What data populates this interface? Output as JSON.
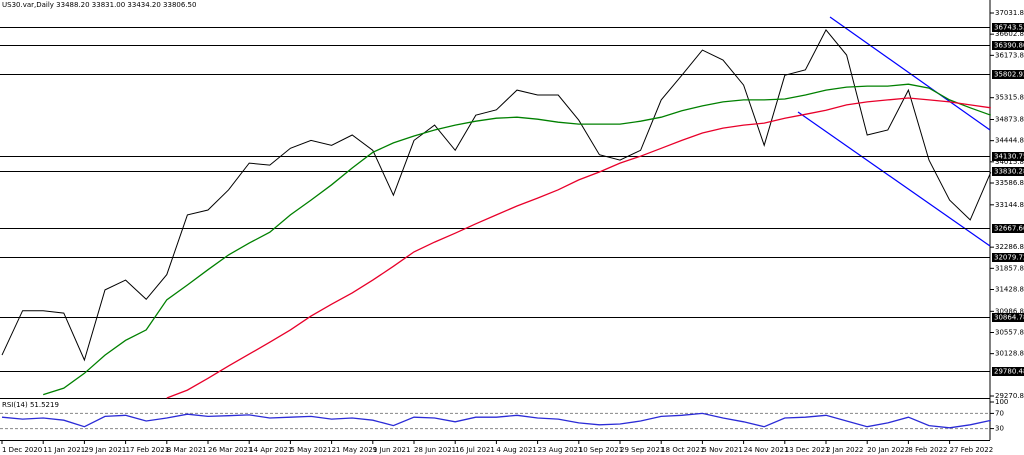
{
  "chart_data": [
    {
      "type": "line",
      "title": "US30.var,Daily  33488.20 33831.00 33434.20 33806.50",
      "categories": [
        "1 Dec 2020",
        null,
        "11 Jan 2021",
        null,
        "29 Jan 2021",
        null,
        "17 Feb 2021",
        null,
        "8 Mar 2021",
        null,
        "26 Mar 2021",
        null,
        "14 Apr 2021",
        null,
        "5 May 2021",
        null,
        "21 May 2021",
        null,
        "9 Jun 2021",
        null,
        "28 Jun 2021",
        null,
        "16 Jul 2021",
        null,
        "4 Aug 2021",
        null,
        "23 Aug 2021",
        null,
        "10 Sep 2021",
        null,
        "29 Sep 2021",
        null,
        "18 Oct 2021",
        null,
        "5 Nov 2021",
        null,
        "24 Nov 2021",
        null,
        "13 Dec 2021",
        null,
        "2 Jan 2022",
        null,
        "20 Jan 2022",
        null,
        "8 Feb 2022",
        null,
        "27 Feb 2022",
        null,
        null
      ],
      "series": [
        {
          "color": "#000000",
          "values": [
            30100,
            31000,
            31000,
            30950,
            30000,
            31420,
            31620,
            31230,
            31730,
            32940,
            33040,
            33450,
            33990,
            33950,
            34290,
            34450,
            34350,
            34560,
            34250,
            33340,
            34450,
            34760,
            34250,
            34960,
            35070,
            35470,
            35370,
            35370,
            34860,
            34160,
            34050,
            34250,
            35270,
            35770,
            36280,
            36080,
            35570,
            34350,
            35770,
            35880,
            36690,
            36180,
            34560,
            34660,
            35470,
            34050,
            33240,
            32840,
            33806.5
          ]
        },
        {
          "color": "#008000",
          "values": [
            null,
            null,
            29300,
            29430,
            29730,
            30100,
            30400,
            30610,
            31220,
            31520,
            31830,
            32130,
            32370,
            32590,
            32940,
            33240,
            33550,
            33890,
            34210,
            34400,
            34540,
            34660,
            34760,
            34840,
            34900,
            34920,
            34880,
            34820,
            34780,
            34780,
            34780,
            34840,
            34920,
            35050,
            35150,
            35230,
            35270,
            35270,
            35290,
            35370,
            35470,
            35530,
            35550,
            35550,
            35590,
            35510,
            35270,
            35110,
            34960
          ]
        },
        {
          "color": "#e8002a",
          "values": [
            null,
            null,
            null,
            null,
            null,
            null,
            null,
            null,
            29230,
            29390,
            29630,
            29880,
            30120,
            30360,
            30610,
            30890,
            31130,
            31360,
            31620,
            31900,
            32190,
            32390,
            32570,
            32760,
            32940,
            33120,
            33280,
            33450,
            33650,
            33810,
            33990,
            34130,
            34290,
            34450,
            34600,
            34700,
            34760,
            34800,
            34900,
            34980,
            35060,
            35170,
            35230,
            35270,
            35310,
            35270,
            35230,
            35170,
            35110
          ]
        }
      ],
      "ylim": [
        29270.8,
        37031.8
      ],
      "yticks": [
        {
          "value": 37031.8,
          "label": "37031.80"
        },
        {
          "value": 36602.8,
          "label": "36602.80"
        },
        {
          "value": 36173.8,
          "label": "36173.80"
        },
        {
          "value": 35315.8,
          "label": "35315.80"
        },
        {
          "value": 34873.8,
          "label": "34873.80"
        },
        {
          "value": 34444.8,
          "label": "34444.80"
        },
        {
          "value": 34015.8,
          "label": "34015.80"
        },
        {
          "value": 33586.8,
          "label": "33586.80"
        },
        {
          "value": 33144.8,
          "label": "33144.80"
        },
        {
          "value": 32286.8,
          "label": "32286.80"
        },
        {
          "value": 31857.8,
          "label": "31857.80"
        },
        {
          "value": 31428.8,
          "label": "31428.80"
        },
        {
          "value": 30986.8,
          "label": "30986.80"
        },
        {
          "value": 30557.8,
          "label": "30557.80"
        },
        {
          "value": 30128.8,
          "label": "30128.80"
        },
        {
          "value": 29270.8,
          "label": "29270.80"
        }
      ],
      "levels": [
        36743.53,
        {
          "value": 36390.8,
          "label": "36390.80"
        },
        35802.93,
        34130.75,
        33830.28,
        {
          "value": 32667.6,
          "label": "32667.60"
        },
        32079.72,
        30864.78,
        29780.48
      ]
    },
    {
      "type": "line",
      "title": "RSI(14) 51.5219",
      "series": [
        {
          "color": "#2b2bd6",
          "values": [
            60,
            55,
            58,
            52,
            35,
            62,
            65,
            50,
            58,
            68,
            62,
            64,
            66,
            58,
            60,
            62,
            55,
            58,
            52,
            38,
            60,
            58,
            48,
            60,
            60,
            65,
            58,
            55,
            45,
            40,
            42,
            50,
            62,
            65,
            70,
            58,
            48,
            35,
            58,
            60,
            65,
            50,
            35,
            45,
            60,
            38,
            32,
            40,
            51.5219
          ]
        }
      ],
      "ylim": [
        0,
        100
      ],
      "yticks": [
        100,
        70,
        30
      ]
    }
  ]
}
